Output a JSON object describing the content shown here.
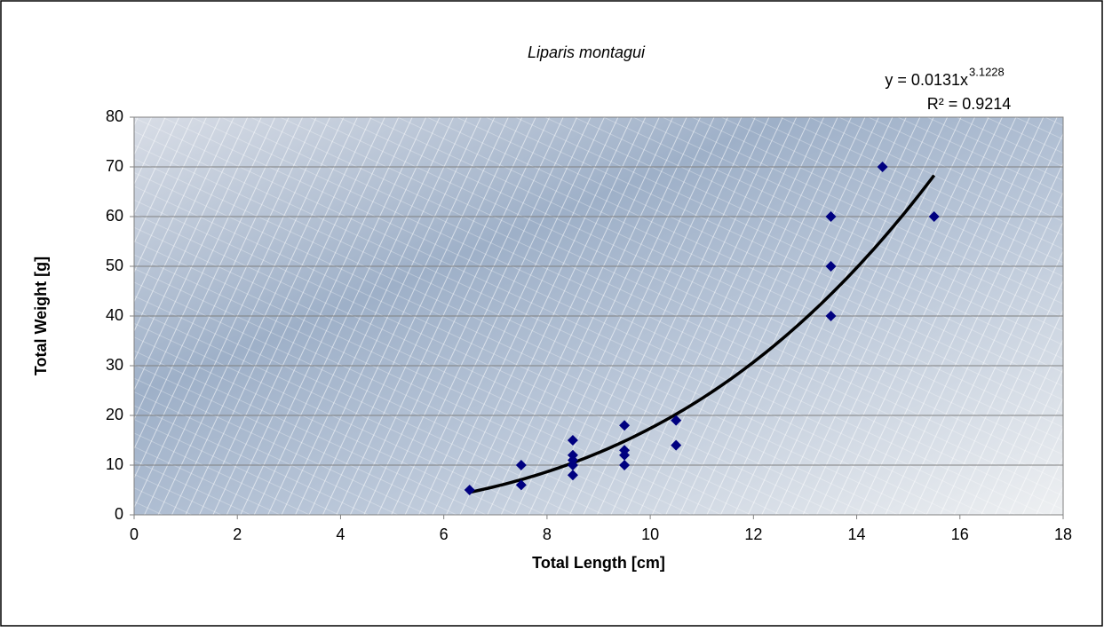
{
  "chart_data": {
    "type": "scatter",
    "title": "Liparis montagui",
    "x_label": "Total Length [cm]",
    "y_label": "Total Weight [g]",
    "x": [
      6.5,
      7.5,
      7.5,
      8.5,
      8.5,
      8.5,
      8.5,
      8.5,
      9.5,
      9.5,
      9.5,
      9.5,
      10.5,
      10.5,
      13.5,
      13.5,
      13.5,
      14.5,
      15.5
    ],
    "values": [
      5,
      10,
      6,
      15,
      12,
      11,
      10,
      8,
      18,
      13,
      12,
      10,
      19,
      14,
      60,
      50,
      40,
      70,
      60
    ],
    "color": "#000080",
    "trendline": {
      "type": "power",
      "coefficient": 0.0131,
      "exponent": 3.1228,
      "equation_label": "y = 0.0131x",
      "exponent_label": "3.1228",
      "r2_label": "R² = 0.9214",
      "color": "#000000"
    },
    "xlim": [
      0,
      18
    ],
    "xticks": [
      0,
      2,
      4,
      6,
      8,
      10,
      12,
      14,
      16,
      18
    ],
    "ylim": [
      0,
      80
    ],
    "yticks": [
      0,
      10,
      20,
      30,
      40,
      50,
      60,
      70,
      80
    ],
    "grid": true
  }
}
